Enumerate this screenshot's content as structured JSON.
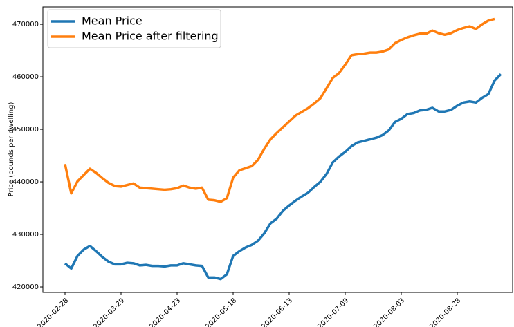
{
  "chart_data": {
    "type": "line",
    "ylabel": "Price (pounds per dwelling)",
    "categories": [
      "2020-02-28",
      null,
      null,
      null,
      null,
      null,
      null,
      null,
      null,
      "2020-03-29",
      null,
      null,
      null,
      null,
      null,
      null,
      null,
      null,
      "2020-04-23",
      null,
      null,
      null,
      null,
      null,
      null,
      null,
      null,
      "2020-05-18",
      null,
      null,
      null,
      null,
      null,
      null,
      null,
      null,
      "2020-06-13",
      null,
      null,
      null,
      null,
      null,
      null,
      null,
      null,
      "2020-07-09",
      null,
      null,
      null,
      null,
      null,
      null,
      null,
      null,
      "2020-08-03",
      null,
      null,
      null,
      null,
      null,
      null,
      null,
      null,
      "2020-08-28",
      null,
      null,
      null,
      null,
      null,
      null,
      null
    ],
    "series": [
      {
        "name": "Mean Price",
        "color": "#1f77b4",
        "values": [
          424470,
          423500,
          425900,
          427100,
          427800,
          426800,
          425700,
          424800,
          424300,
          424300,
          424600,
          424500,
          424100,
          424200,
          424000,
          424000,
          423900,
          424100,
          424100,
          424500,
          424300,
          424100,
          424000,
          421800,
          421800,
          421500,
          422400,
          425900,
          426800,
          427500,
          428000,
          428800,
          430200,
          432100,
          433000,
          434500,
          435500,
          436400,
          437200,
          437900,
          439000,
          440000,
          441500,
          443700,
          444800,
          445700,
          446800,
          447500,
          447800,
          448100,
          448400,
          448900,
          449800,
          451400,
          452000,
          452900,
          453100,
          453600,
          453700,
          454100,
          453400,
          453400,
          453700,
          454500,
          455100,
          455300,
          455100,
          456000,
          456700,
          459300,
          460500
        ]
      },
      {
        "name": "Mean Price after filtering",
        "color": "#ff7f0e",
        "values": [
          443400,
          437800,
          440100,
          441300,
          442500,
          441700,
          440700,
          439800,
          439200,
          439100,
          439400,
          439700,
          438900,
          438800,
          438700,
          438600,
          438500,
          438600,
          438800,
          439300,
          438900,
          438700,
          438900,
          436600,
          436500,
          436200,
          436900,
          440800,
          442200,
          442600,
          443000,
          444200,
          446300,
          448100,
          449300,
          450400,
          451500,
          452600,
          453300,
          454000,
          454900,
          455900,
          457800,
          459800,
          460700,
          462300,
          464100,
          464300,
          464400,
          464600,
          464600,
          464800,
          465200,
          466400,
          467000,
          467500,
          467900,
          468200,
          468200,
          468800,
          468300,
          468000,
          468300,
          468900,
          469300,
          469600,
          469100,
          470000,
          470700,
          471000,
          null
        ]
      }
    ],
    "ylim": [
      418950,
      473300
    ],
    "yticks": [
      420000,
      430000,
      440000,
      450000,
      460000,
      470000
    ],
    "legend": "upper left"
  }
}
